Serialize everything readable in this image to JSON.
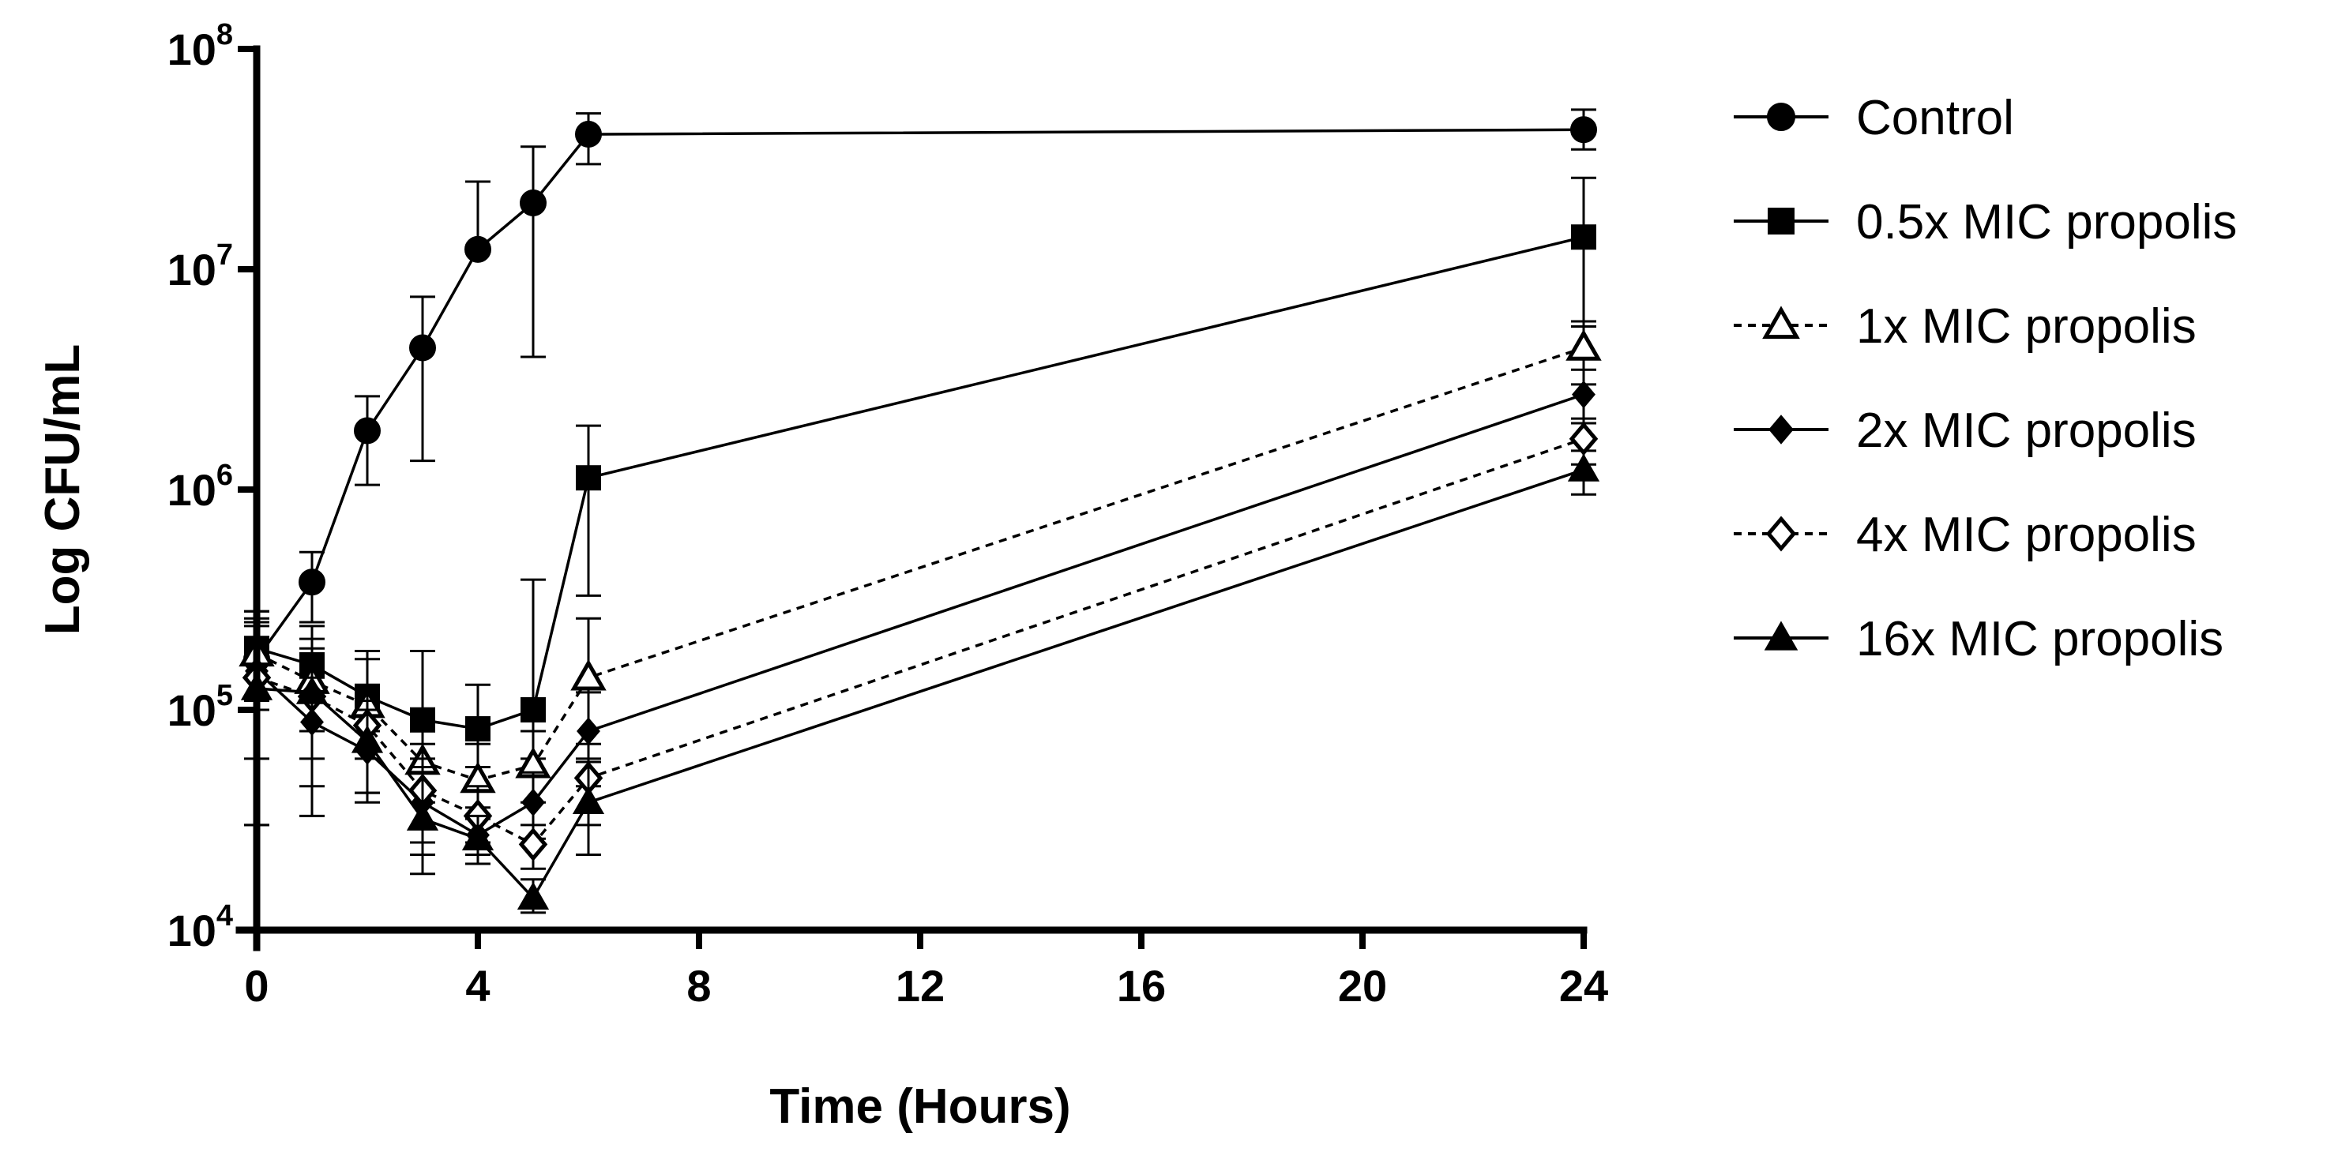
{
  "chart_data": {
    "type": "line",
    "title": "",
    "xlabel": "Time (Hours)",
    "ylabel": "Log CFU/mL",
    "x_ticks": [
      0,
      4,
      8,
      12,
      16,
      20,
      24
    ],
    "x_tick_labels": [
      "0",
      "4",
      "8",
      "12",
      "16",
      "20",
      "24"
    ],
    "xlim": [
      0,
      24
    ],
    "yscale": "log",
    "ylim": [
      10000,
      100000000
    ],
    "y_tick_labels": [
      {
        "base": "10",
        "exp": "4"
      },
      {
        "base": "10",
        "exp": "5"
      },
      {
        "base": "10",
        "exp": "6"
      },
      {
        "base": "10",
        "exp": "7"
      },
      {
        "base": "10",
        "exp": "8"
      }
    ],
    "grid": false,
    "legend_position": "right",
    "series": [
      {
        "name": "Control",
        "marker": "filled-circle",
        "line": "solid",
        "x": [
          0,
          1,
          2,
          3,
          4,
          5,
          6,
          24
        ],
        "y": [
          170000,
          380000,
          1850000,
          4400000,
          12300000,
          20000000,
          41000000,
          43000000
        ],
        "err_low": [
          110000,
          250000,
          1050000,
          1350000,
          12300000,
          4000000,
          30000000,
          35000000
        ],
        "err_high": [
          280000,
          520000,
          2650000,
          7500000,
          25000000,
          36000000,
          51000000,
          53000000
        ]
      },
      {
        "name": "0.5x MIC propolis",
        "marker": "filled-square",
        "line": "solid",
        "x": [
          0,
          1,
          2,
          3,
          4,
          5,
          6,
          24
        ],
        "y": [
          190000,
          160000,
          115000,
          90000,
          82000,
          100000,
          1130000,
          14000000
        ],
        "err_low": [
          110000,
          110000,
          80000,
          55000,
          55000,
          60000,
          330000,
          5500000
        ],
        "err_high": [
          280000,
          240000,
          185000,
          185000,
          130000,
          390000,
          1950000,
          26000000
        ]
      },
      {
        "name": "1x MIC propolis",
        "marker": "open-triangle",
        "line": "dashed",
        "x": [
          0,
          1,
          2,
          3,
          4,
          5,
          6,
          24
        ],
        "y": [
          180000,
          135000,
          105000,
          58000,
          48000,
          56000,
          140000,
          4400000
        ],
        "err_low": [
          100000,
          80000,
          60000,
          38000,
          32000,
          38000,
          60000,
          3000000
        ],
        "err_high": [
          260000,
          210000,
          170000,
          90000,
          70000,
          80000,
          260000,
          5800000
        ]
      },
      {
        "name": "2x MIC propolis",
        "marker": "filled-diamond",
        "line": "solid",
        "x": [
          0,
          1,
          2,
          3,
          4,
          5,
          6,
          24
        ],
        "y": [
          150000,
          88000,
          65000,
          38000,
          27000,
          38000,
          80000,
          2700000
        ],
        "err_low": [
          60000,
          33000,
          38000,
          22000,
          20000,
          26000,
          45000,
          2000000
        ],
        "err_high": [
          250000,
          140000,
          100000,
          60000,
          36000,
          52000,
          120000,
          3500000
        ]
      },
      {
        "name": "4x MIC propolis",
        "marker": "open-diamond",
        "line": "dashed",
        "x": [
          0,
          1,
          2,
          3,
          4,
          5,
          6,
          24
        ],
        "y": [
          140000,
          115000,
          85000,
          43000,
          33000,
          24500,
          49000,
          1700000
        ],
        "err_low": [
          30000,
          45000,
          42000,
          25000,
          25000,
          19000,
          30000,
          1300000
        ],
        "err_high": [
          240000,
          180000,
          130000,
          70000,
          45000,
          30000,
          70000,
          2100000
        ]
      },
      {
        "name": "16x MIC propolis",
        "marker": "filled-triangle",
        "line": "solid",
        "x": [
          0,
          1,
          2,
          3,
          4,
          5,
          6,
          24
        ],
        "y": [
          125000,
          120000,
          72000,
          32000,
          26000,
          14000,
          38000,
          1230000
        ],
        "err_low": [
          30000,
          60000,
          42000,
          18000,
          22000,
          12000,
          22000,
          950000
        ],
        "err_high": [
          200000,
          190000,
          110000,
          55000,
          33000,
          17000,
          58000,
          1500000
        ]
      }
    ]
  }
}
